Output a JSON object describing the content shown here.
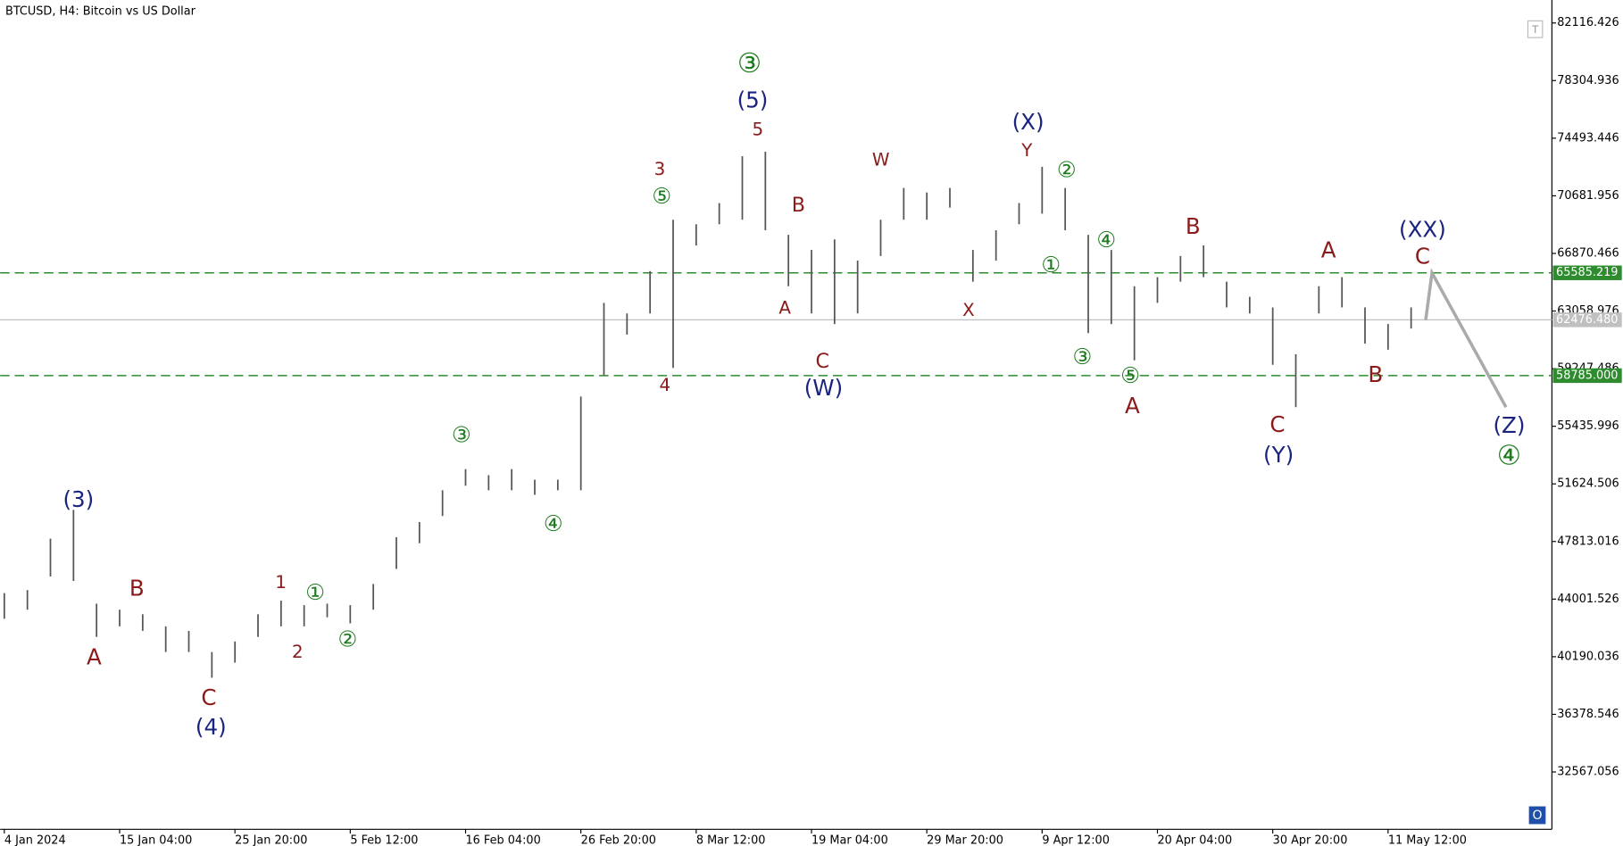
{
  "chart_data": {
    "type": "hlc",
    "title": "BTCUSD, H4:  Bitcoin vs US Dollar",
    "color": "#555555",
    "categories": [
      "4 Jan 2024",
      null,
      null,
      null,
      null,
      "15 Jan 04:00",
      null,
      null,
      null,
      null,
      "25 Jan 20:00",
      null,
      null,
      null,
      null,
      "5 Feb 12:00",
      null,
      null,
      null,
      null,
      "16 Feb 04:00",
      null,
      null,
      null,
      null,
      "26 Feb 20:00",
      null,
      null,
      null,
      null,
      "8 Mar 12:00",
      null,
      null,
      null,
      null,
      "19 Mar 04:00",
      null,
      null,
      null,
      null,
      "29 Mar 20:00",
      null,
      null,
      null,
      null,
      "9 Apr 12:00",
      null,
      null,
      null,
      null,
      "20 Apr 04:00",
      null,
      null,
      null,
      null,
      "30 Apr 20:00",
      null,
      null,
      null,
      null,
      "11 May 12:00",
      null
    ],
    "high": [
      44400,
      44600,
      48000,
      49900,
      43700,
      43300,
      43000,
      42200,
      41900,
      40500,
      41200,
      43000,
      43900,
      43600,
      43700,
      43600,
      45000,
      48100,
      49100,
      51200,
      52600,
      52200,
      52600,
      51900,
      51900,
      57400,
      63600,
      62900,
      65700,
      69100,
      68800,
      70200,
      73300,
      73600,
      68100,
      67100,
      67800,
      66400,
      69100,
      71200,
      70900,
      71200,
      67100,
      68400,
      70200,
      72600,
      71200,
      68100,
      67100,
      64700,
      65300,
      66700,
      67400,
      65000,
      64000,
      63300,
      60200,
      64700,
      65300,
      63300,
      62200,
      63300
    ],
    "low": [
      42700,
      43300,
      45500,
      45200,
      41500,
      42200,
      41900,
      40500,
      40500,
      38800,
      39800,
      41500,
      42200,
      42200,
      42800,
      42400,
      43300,
      46000,
      47700,
      49500,
      51500,
      51200,
      51200,
      50900,
      51200,
      51200,
      58800,
      61500,
      62900,
      59300,
      67400,
      68800,
      69100,
      68400,
      64700,
      62900,
      62200,
      62900,
      66700,
      69100,
      69100,
      69900,
      65000,
      66400,
      68800,
      69500,
      68400,
      61600,
      62200,
      59800,
      63600,
      65000,
      65300,
      63300,
      62900,
      59500,
      56700,
      62900,
      63300,
      60900,
      60500,
      61900
    ],
    "forecast": {
      "color": "#aaaaaa",
      "values": [
        62476.48,
        65585.219,
        56700
      ]
    },
    "ylim": [
      28772.7,
      83634.6
    ],
    "yticks": [
      82116.426,
      78304.936,
      74493.446,
      70681.956,
      66870.466,
      63058.976,
      59247.486,
      55435.996,
      51624.506,
      47813.016,
      44001.526,
      40190.036,
      36378.546,
      32567.056
    ],
    "hlines": [
      {
        "value": 65585.219,
        "color": "#2e8b2e",
        "style": "dashed"
      },
      {
        "value": 58785.0,
        "label": "58785.000",
        "color": "#2e8b2e",
        "style": "dashed"
      },
      {
        "value": 62476.48,
        "label": "62476.480",
        "color": "#c0c0c0",
        "style": "solid"
      }
    ],
    "annotations": [
      "③",
      "(5)",
      "5",
      "3",
      "⑤",
      "4",
      "B",
      "A",
      "C",
      "(W)",
      "W",
      "X",
      "(X)",
      "Y",
      "②",
      "①",
      "④",
      "③",
      "⑤",
      "A",
      "B",
      "C",
      "(Y)",
      "A",
      "B",
      "(XX)",
      "C",
      "(Z)",
      "④",
      "(3)",
      "B",
      "A",
      "C",
      "(4)",
      "1",
      "2",
      "①",
      "②",
      "③",
      "④"
    ],
    "icons": [
      "T",
      "O"
    ]
  }
}
